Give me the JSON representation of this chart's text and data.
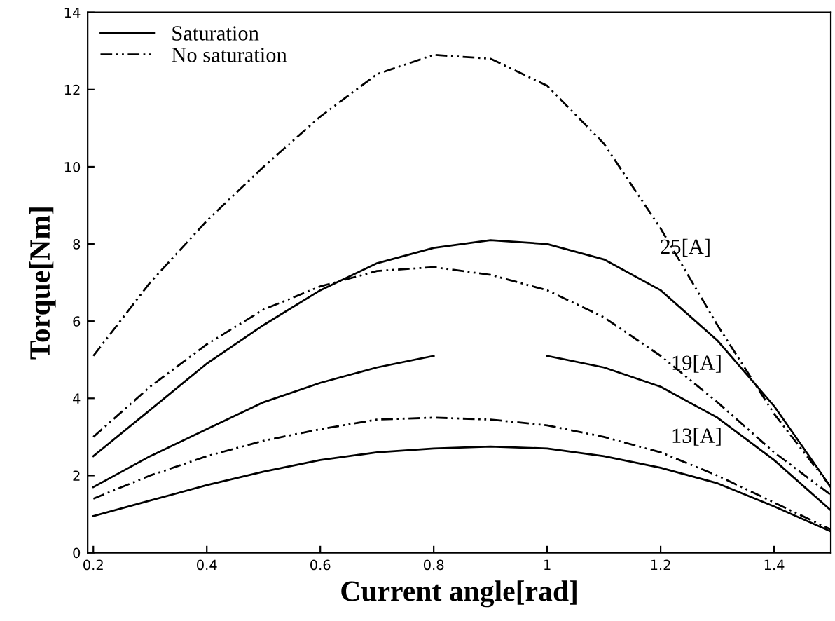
{
  "chart_data": {
    "type": "line",
    "xlabel": "Current angle[rad]",
    "ylabel": "Torque[Nm]",
    "x": [
      0.2,
      0.3,
      0.4,
      0.5,
      0.6,
      0.7,
      0.8,
      0.9,
      1.0,
      1.1,
      1.2,
      1.3,
      1.4,
      1.5
    ],
    "series": [
      {
        "name": "Saturation",
        "color": "#000000",
        "line_style": "solid",
        "values": [
          2.5,
          3.7,
          4.9,
          5.9,
          6.8,
          7.5,
          7.9,
          8.1,
          8.0,
          7.6,
          6.8,
          5.5,
          3.8,
          1.7
        ]
      },
      {
        "name": "No saturation",
        "color": "#000000",
        "line_style": "dashdot",
        "values": [
          5.1,
          7.0,
          8.6,
          10.0,
          11.3,
          12.4,
          12.9,
          12.8,
          12.1,
          10.6,
          8.4,
          5.9,
          3.6,
          1.7
        ]
      },
      {
        "color": "#000000",
        "line_style": "solid",
        "values": [
          1.7,
          2.5,
          3.2,
          3.9,
          4.4,
          4.8,
          5.1,
          null,
          5.1,
          4.8,
          4.3,
          3.5,
          2.4,
          1.1
        ]
      },
      {
        "color": "#000000",
        "line_style": "dashdot",
        "values": [
          3.0,
          4.3,
          5.4,
          6.3,
          6.9,
          7.3,
          7.4,
          7.2,
          6.8,
          6.1,
          5.1,
          3.9,
          2.6,
          1.5
        ]
      },
      {
        "color": "#000000",
        "line_style": "solid",
        "values": [
          0.95,
          1.35,
          1.75,
          2.1,
          2.4,
          2.6,
          2.7,
          2.75,
          2.7,
          2.5,
          2.2,
          1.8,
          1.2,
          0.55
        ]
      },
      {
        "color": "#000000",
        "line_style": "dashdot",
        "values": [
          1.4,
          2.0,
          2.5,
          2.9,
          3.2,
          3.45,
          3.5,
          3.45,
          3.3,
          3.0,
          2.6,
          2.0,
          1.3,
          0.6
        ]
      }
    ],
    "annotations": [
      "25[A]",
      "19[A]",
      "13[A]"
    ],
    "xlim": [
      0.19,
      1.5
    ],
    "xticks": [
      0.2,
      0.4,
      0.6,
      0.8,
      1,
      1.2,
      1.4
    ],
    "ylim": [
      0,
      14
    ],
    "yticks": [
      0,
      2,
      4,
      6,
      8,
      10,
      12,
      14
    ],
    "legend": "top left",
    "grid": false,
    "marker": "none"
  }
}
